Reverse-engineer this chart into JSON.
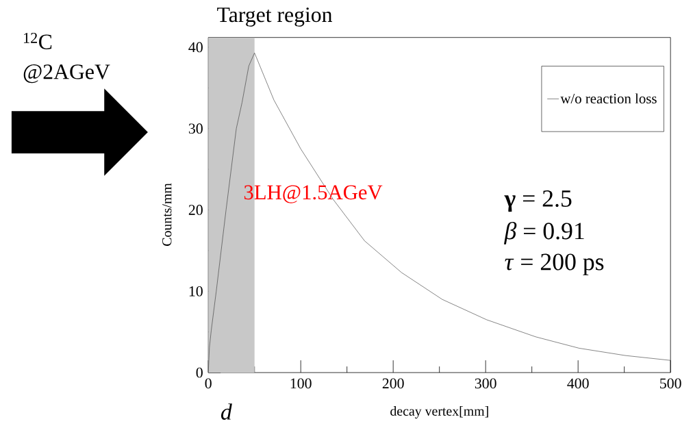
{
  "chart_data": {
    "type": "line",
    "xlabel": "decay vertex[mm]",
    "ylabel": "Counts/mm",
    "series": [
      {
        "name": "w/o reaction loss",
        "color": "#333333",
        "x": [
          0,
          1.2,
          3.2,
          8.6,
          19.2,
          30.3,
          36.5,
          43.8,
          50,
          71,
          100,
          135,
          169,
          209,
          253,
          301,
          354,
          401,
          451,
          500
        ],
        "values": [
          0,
          3.1,
          5.2,
          10,
          20,
          30,
          33.2,
          37.7,
          39.3,
          33.5,
          27.5,
          21.3,
          16.2,
          12.3,
          9.0,
          6.5,
          4.4,
          3.0,
          2.1,
          1.5
        ]
      }
    ],
    "xlim": [
      0,
      500
    ],
    "ylim": [
      0,
      41.2
    ],
    "xticks": [
      0,
      100,
      200,
      300,
      400,
      500
    ],
    "yticks": [
      0,
      10,
      20,
      30,
      40
    ],
    "bands": [
      {
        "axis": "x",
        "from": 0,
        "to": 50,
        "label": "Target region",
        "color": "#c8c8c8"
      }
    ],
    "annotations": [
      "$^{12}$C @2AGeV",
      "d",
      "3LH@1.5AGeV",
      "**γ** = 2.5",
      "*β* = 0.91",
      "*τ* = 200 ps"
    ],
    "legend": "top right",
    "grid": false,
    "marker": "none",
    "line_style": "solid"
  }
}
